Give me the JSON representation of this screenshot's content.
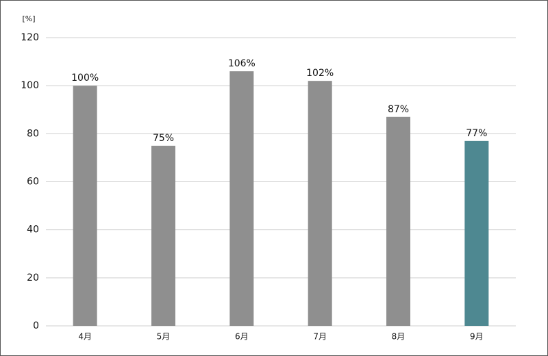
{
  "chart_data": {
    "type": "bar",
    "y_axis_label": "[%]",
    "categories": [
      "4月",
      "5月",
      "6月",
      "7月",
      "8月",
      "9月"
    ],
    "values": [
      100,
      75,
      106,
      102,
      87,
      77
    ],
    "value_labels": [
      "100%",
      "75%",
      "106%",
      "102%",
      "87%",
      "77%"
    ],
    "colors": [
      "#8f8f8f",
      "#8f8f8f",
      "#8f8f8f",
      "#8f8f8f",
      "#8f8f8f",
      "#4e8891"
    ],
    "ylim": [
      0,
      120
    ],
    "yticks": [
      0,
      20,
      40,
      60,
      80,
      100,
      120
    ],
    "grid": true
  }
}
